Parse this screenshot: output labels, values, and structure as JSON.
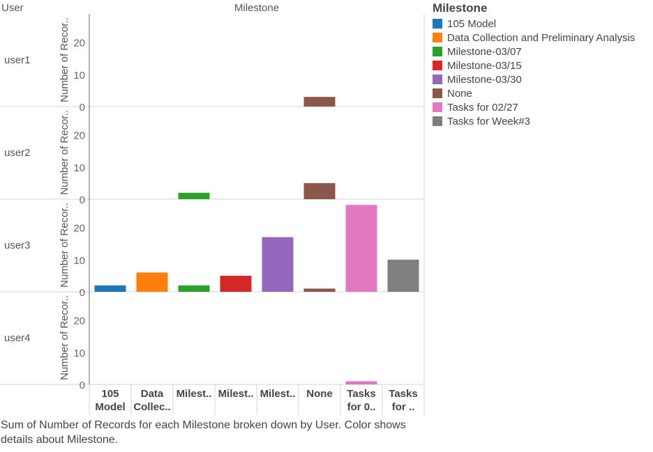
{
  "header": {
    "row_dim": "User",
    "col_dim": "Milestone"
  },
  "legend": {
    "title": "Milestone",
    "items": [
      {
        "label": "105 Model",
        "color": "#1f77b4"
      },
      {
        "label": "Data Collection and Preliminary Analysis",
        "color": "#ff7f0e"
      },
      {
        "label": "Milestone-03/07",
        "color": "#2ca02c"
      },
      {
        "label": "Milestone-03/15",
        "color": "#d62728"
      },
      {
        "label": "Milestone-03/30",
        "color": "#9467bd"
      },
      {
        "label": "None",
        "color": "#8c564b"
      },
      {
        "label": "Tasks for 02/27",
        "color": "#e377c2"
      },
      {
        "label": "Tasks for Week#3",
        "color": "#7f7f7f"
      }
    ]
  },
  "caption": "Sum of Number of Records for each Milestone broken down by User.  Color shows details about Milestone.",
  "chart_data": {
    "type": "bar",
    "ylabel": "Number of Recor..",
    "yticks": [
      0,
      10,
      20
    ],
    "ylim": [
      0,
      30
    ],
    "categories": [
      "105 Model",
      "Data Collec..",
      "Milest..",
      "Milest..",
      "Milest..",
      "None",
      "Tasks for 0..",
      "Tasks for .."
    ],
    "category_labels": [
      [
        "105",
        "Model"
      ],
      [
        "Data",
        "Collec.."
      ],
      [
        "Milest.."
      ],
      [
        "Milest.."
      ],
      [
        "Milest.."
      ],
      [
        "None"
      ],
      [
        "Tasks",
        "for 0.."
      ],
      [
        "Tasks",
        "for .."
      ]
    ],
    "category_colors": [
      "#1f77b4",
      "#ff7f0e",
      "#2ca02c",
      "#d62728",
      "#9467bd",
      "#8c564b",
      "#e377c2",
      "#7f7f7f"
    ],
    "rows": [
      {
        "label": "user1",
        "values": [
          null,
          null,
          null,
          null,
          null,
          3,
          null,
          null
        ]
      },
      {
        "label": "user2",
        "values": [
          null,
          null,
          2,
          null,
          null,
          5,
          null,
          null
        ]
      },
      {
        "label": "user3",
        "values": [
          2,
          6,
          2,
          5,
          17,
          1,
          27,
          10
        ]
      },
      {
        "label": "user4",
        "values": [
          null,
          null,
          null,
          null,
          null,
          null,
          1,
          null
        ]
      }
    ],
    "grid": false,
    "legend_position": "right"
  }
}
